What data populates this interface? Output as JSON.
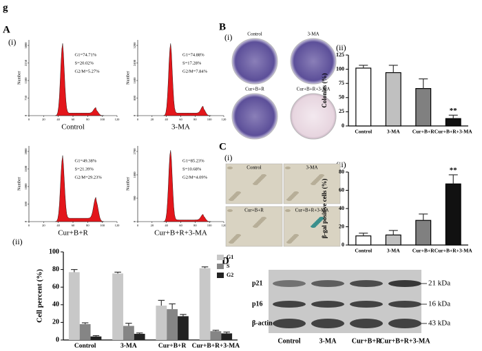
{
  "figure_letter": "g",
  "panels": {
    "A": "A",
    "B": "B",
    "C": "C",
    "D": "D",
    "i": "(i)",
    "ii": "(ii)"
  },
  "flow": {
    "ylabel": "Number",
    "xticks": [
      0,
      20,
      40,
      60,
      80,
      100,
      120
    ],
    "plots": [
      {
        "caption": "Control",
        "stats": [
          "G1=74.71%",
          "S=20.02%",
          "G2/M=5.27%"
        ],
        "yticks": [
          0,
          750,
          1500,
          2250,
          3000
        ]
      },
      {
        "caption": "3-MA",
        "stats": [
          "G1=74.88%",
          "S=17.28%",
          "G2/M=7.84%"
        ],
        "yticks": [
          0,
          800,
          1600,
          2400,
          3200
        ]
      },
      {
        "caption": "Cur+B+R",
        "stats": [
          "G1=49.38%",
          "S=21.39%",
          "G2/M=29.23%"
        ],
        "yticks": [
          0,
          500,
          1000,
          1500,
          2000
        ]
      },
      {
        "caption": "Cur+B+R+3-MA",
        "stats": [
          "G1=85.23%",
          "S=10.68%",
          "G2/M=4.09%"
        ],
        "yticks": [
          0,
          900,
          1800,
          2700
        ]
      }
    ]
  },
  "colony_images": [
    "Control",
    "3-MA",
    "Cur+B+R",
    "Cur+B+R+3-MA"
  ],
  "sa_images": [
    "Control",
    "3-MA",
    "Cur+B+R",
    "Cur+B+R+3-MA"
  ],
  "blot": {
    "rows": [
      {
        "protein": "p21",
        "size": "21 kDa"
      },
      {
        "protein": "p16",
        "size": "16 kDa"
      },
      {
        "protein": "β-actin",
        "size": "43 kDa"
      }
    ],
    "lanes": [
      "Control",
      "3-MA",
      "Cur+B+R",
      "Cur+B+R+3-MA"
    ]
  },
  "chart_data": [
    {
      "type": "bar",
      "ylabel": "Cell percent (%)",
      "categories": [
        "Control",
        "3-MA",
        "Cur+B+R",
        "Cur+B+R+3-MA"
      ],
      "ylim": [
        0,
        100
      ],
      "yticks": [
        0,
        20,
        40,
        60,
        80,
        100
      ],
      "legend": "upper right",
      "series": [
        {
          "name": "G1",
          "color": "#c8c8c8",
          "values": [
            77,
            75.5,
            39,
            81.5
          ],
          "errors": [
            3,
            1.5,
            6,
            1.5
          ]
        },
        {
          "name": "S",
          "color": "#858585",
          "values": [
            18,
            16,
            35,
            10
          ],
          "errors": [
            1.5,
            3,
            6,
            1
          ]
        },
        {
          "name": "G2",
          "color": "#222222",
          "values": [
            4,
            7,
            27,
            7.5
          ],
          "errors": [
            1,
            1,
            2,
            1.5
          ]
        }
      ]
    },
    {
      "type": "bar",
      "ylabel": "Colonies (%)",
      "categories": [
        "Control",
        "3-MA",
        "Cur+B+R",
        "Cur+B+R+3-MA"
      ],
      "ylim": [
        0,
        125
      ],
      "yticks": [
        0,
        25,
        50,
        75,
        100,
        125
      ],
      "values": [
        102,
        94,
        66,
        13
      ],
      "errors": [
        5,
        13,
        17,
        6
      ],
      "colors": [
        "#ffffff",
        "#c0c0c0",
        "#808080",
        "#111111"
      ],
      "annotations": [
        {
          "category": "Cur+B+R+3-MA",
          "text": "**"
        }
      ]
    },
    {
      "type": "bar",
      "ylabel": "β-gal positive cells (%)",
      "categories": [
        "Control",
        "3-MA",
        "Cur+B+R",
        "Cur+B+R+3-MA"
      ],
      "ylim": [
        0,
        80
      ],
      "yticks": [
        0,
        20,
        40,
        60,
        80
      ],
      "values": [
        10,
        11,
        27,
        67
      ],
      "errors": [
        3,
        5,
        7,
        10
      ],
      "colors": [
        "#ffffff",
        "#c0c0c0",
        "#808080",
        "#111111"
      ],
      "annotations": [
        {
          "category": "Cur+B+R+3-MA",
          "text": "**"
        }
      ]
    }
  ]
}
